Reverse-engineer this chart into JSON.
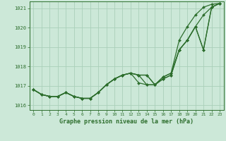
{
  "title": "Graphe pression niveau de la mer (hPa)",
  "bg_color": "#cce8d8",
  "grid_color": "#aacfba",
  "line_color": "#2d6e2d",
  "xlim": [
    -0.5,
    23.5
  ],
  "ylim": [
    1015.75,
    1021.35
  ],
  "yticks": [
    1016,
    1017,
    1018,
    1019,
    1020,
    1021
  ],
  "xticks": [
    0,
    1,
    2,
    3,
    4,
    5,
    6,
    7,
    8,
    9,
    10,
    11,
    12,
    13,
    14,
    15,
    16,
    17,
    18,
    19,
    20,
    21,
    22,
    23
  ],
  "lines": [
    {
      "x": [
        0,
        1,
        2,
        3,
        4,
        5,
        6,
        7,
        8,
        9,
        10,
        11,
        12,
        13,
        14,
        15,
        16,
        17,
        18,
        19,
        20,
        21,
        22,
        23
      ],
      "y": [
        1016.8,
        1016.55,
        1016.45,
        1016.45,
        1016.65,
        1016.45,
        1016.35,
        1016.35,
        1016.65,
        1017.05,
        1017.35,
        1017.55,
        1017.65,
        1017.55,
        1017.55,
        1017.05,
        1017.45,
        1017.65,
        1019.35,
        1020.05,
        1020.65,
        1021.05,
        1021.2,
        1021.25
      ]
    },
    {
      "x": [
        0,
        1,
        2,
        3,
        4,
        5,
        6,
        7,
        8,
        9,
        10,
        11,
        12,
        13,
        14,
        15,
        16,
        17,
        18,
        19,
        20,
        21,
        22,
        23
      ],
      "y": [
        1016.8,
        1016.55,
        1016.45,
        1016.45,
        1016.65,
        1016.45,
        1016.35,
        1016.35,
        1016.65,
        1017.05,
        1017.35,
        1017.55,
        1017.65,
        1017.55,
        1017.55,
        1017.05,
        1017.45,
        1017.65,
        1018.85,
        1019.35,
        1020.05,
        1020.65,
        1021.05,
        1021.25
      ]
    },
    {
      "x": [
        0,
        1,
        2,
        3,
        4,
        5,
        6,
        7,
        8,
        9,
        10,
        11,
        12,
        13,
        14,
        15,
        16,
        17,
        18,
        19,
        20,
        21,
        22,
        23
      ],
      "y": [
        1016.8,
        1016.55,
        1016.45,
        1016.45,
        1016.65,
        1016.45,
        1016.35,
        1016.35,
        1016.65,
        1017.05,
        1017.35,
        1017.55,
        1017.65,
        1017.55,
        1017.05,
        1017.05,
        1017.35,
        1017.55,
        1018.85,
        1019.35,
        1020.05,
        1018.85,
        1021.05,
        1021.25
      ]
    },
    {
      "x": [
        0,
        1,
        2,
        3,
        4,
        5,
        6,
        7,
        8,
        9,
        10,
        11,
        12,
        13,
        14,
        15,
        16,
        17,
        18,
        19,
        20,
        21,
        22,
        23
      ],
      "y": [
        1016.8,
        1016.55,
        1016.45,
        1016.45,
        1016.65,
        1016.45,
        1016.35,
        1016.35,
        1016.65,
        1017.05,
        1017.35,
        1017.55,
        1017.65,
        1017.15,
        1017.05,
        1017.05,
        1017.35,
        1017.55,
        1018.85,
        1019.35,
        1020.05,
        1018.85,
        1021.05,
        1021.25
      ]
    }
  ],
  "markersize": 2.0,
  "linewidth": 0.9
}
